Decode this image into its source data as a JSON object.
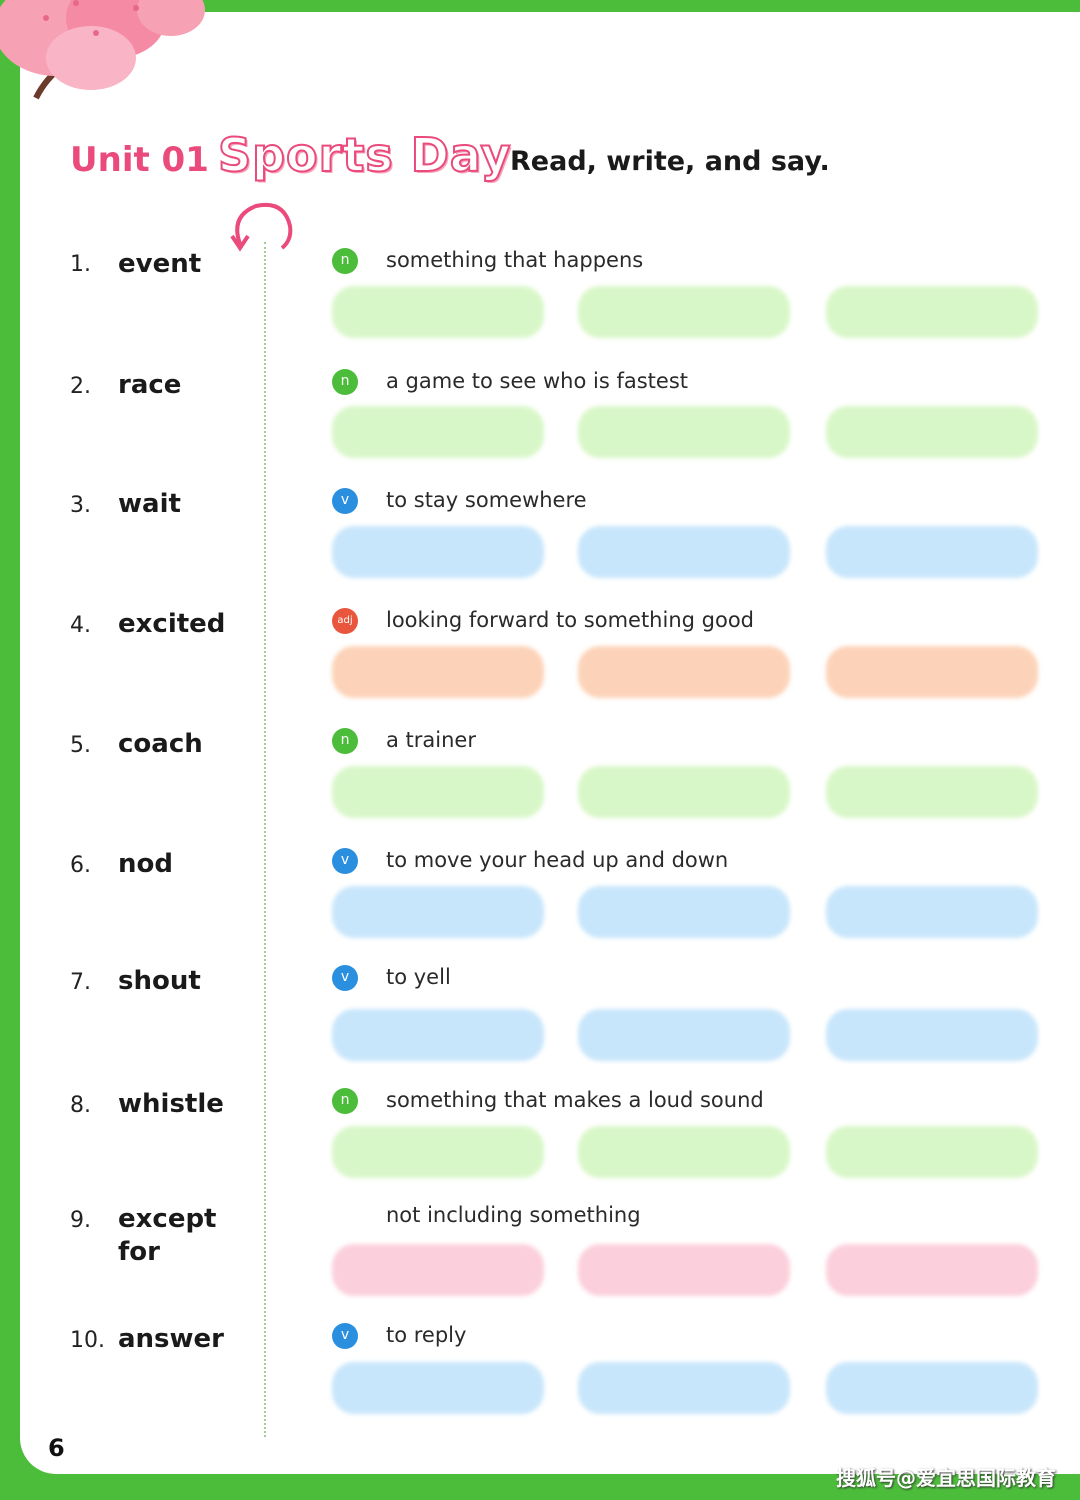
{
  "header": {
    "unit": "Unit 01",
    "title": "Sports Day",
    "instruction": "Read, write, and say."
  },
  "words": [
    {
      "num": "1.",
      "word": "event",
      "pos": "n",
      "definition": "something that happens",
      "color": "green"
    },
    {
      "num": "2.",
      "word": "race",
      "pos": "n",
      "definition": "a game to see who is fastest",
      "color": "green"
    },
    {
      "num": "3.",
      "word": "wait",
      "pos": "v",
      "definition": "to stay somewhere",
      "color": "blue"
    },
    {
      "num": "4.",
      "word": "excited",
      "pos": "adj",
      "definition": "looking forward to something good",
      "color": "orange"
    },
    {
      "num": "5.",
      "word": "coach",
      "pos": "n",
      "definition": "a trainer",
      "color": "green"
    },
    {
      "num": "6.",
      "word": "nod",
      "pos": "v",
      "definition": "to move your head up and down",
      "color": "blue"
    },
    {
      "num": "7.",
      "word": "shout",
      "pos": "v",
      "definition": "to yell",
      "color": "blue"
    },
    {
      "num": "8.",
      "word": "whistle",
      "pos": "n",
      "definition": "something that makes a loud sound",
      "color": "green"
    },
    {
      "num": "9.",
      "word": "except for",
      "pos": "",
      "definition": "not including something",
      "color": "pink"
    },
    {
      "num": "10.",
      "word": "answer",
      "pos": "v",
      "definition": "to reply",
      "color": "blue"
    }
  ],
  "page_number": "6",
  "watermark": "搜狐号@爱宜思国际教育",
  "colors": {
    "border_green": "#4cbd3a",
    "unit_pink": "#ea4b7c",
    "noun_badge": "#4cbd3a",
    "verb_badge": "#2b8fe0",
    "adj_badge": "#e8563d"
  }
}
